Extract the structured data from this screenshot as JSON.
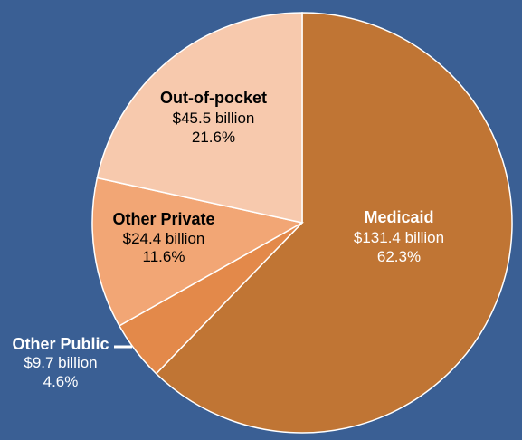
{
  "chart_data": {
    "type": "pie",
    "title": "",
    "start_angle_deg": 0,
    "direction": "clockwise",
    "slices": [
      {
        "name": "Medicaid",
        "amount_label": "$131.4 billion",
        "percent_label": "62.3%",
        "value": 62.3,
        "color": "#c07534",
        "label_color": "#ffffff"
      },
      {
        "name": "Other Public",
        "amount_label": "$9.7 billion",
        "percent_label": "4.6%",
        "value": 4.6,
        "color": "#e3894a",
        "label_color": "#ffffff"
      },
      {
        "name": "Other Private",
        "amount_label": "$24.4 billion",
        "percent_label": "11.6%",
        "value": 11.6,
        "color": "#f2a675",
        "label_color": "#000000"
      },
      {
        "name": "Out-of-pocket",
        "amount_label": "$45.5 billion",
        "percent_label": "21.6%",
        "value": 21.6,
        "color": "#f7c9ad",
        "label_color": "#000000"
      }
    ]
  }
}
